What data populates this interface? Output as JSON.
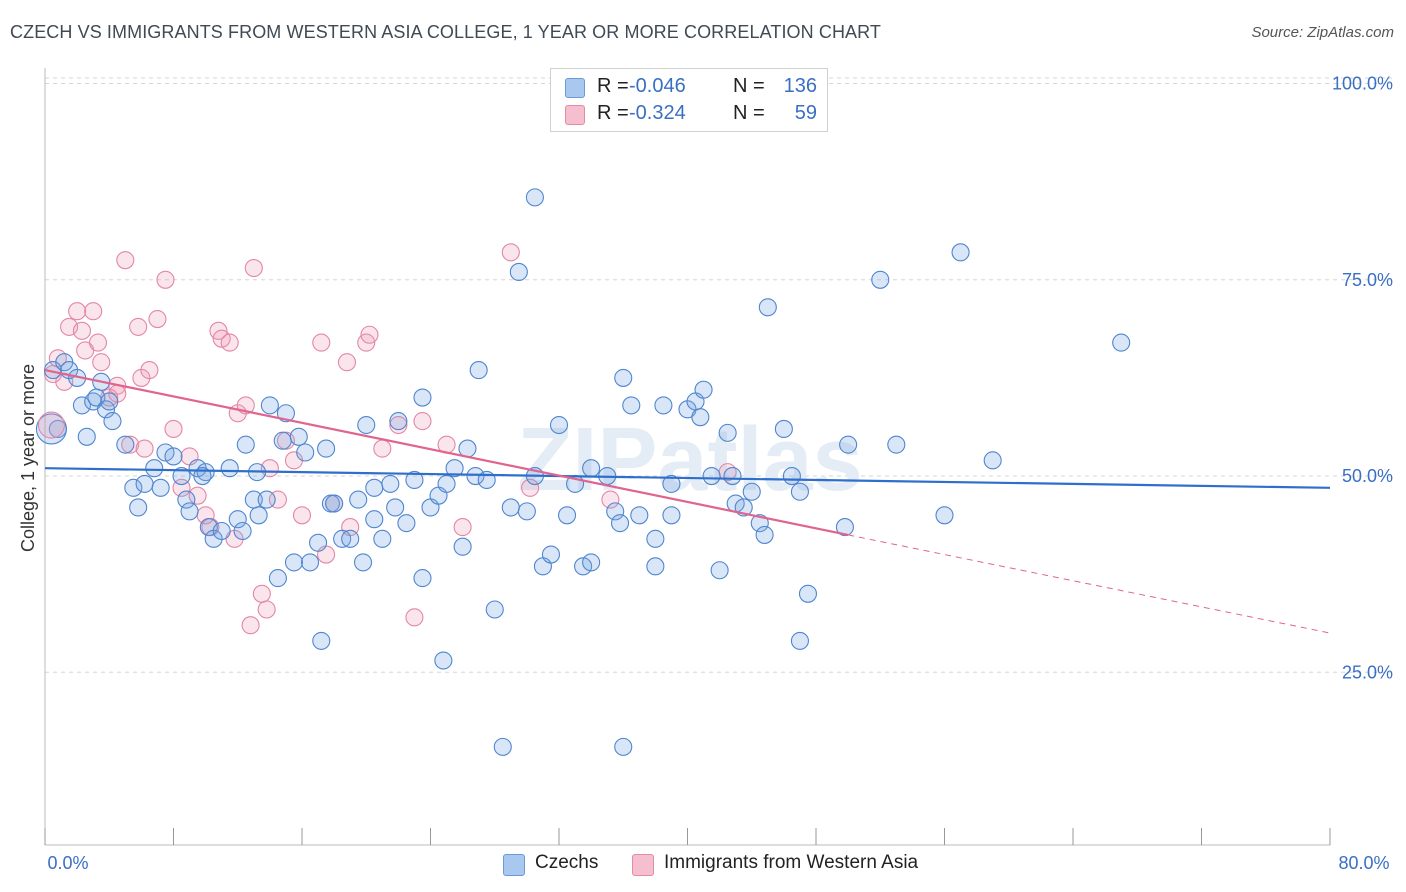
{
  "title": "CZECH VS IMMIGRANTS FROM WESTERN ASIA COLLEGE, 1 YEAR OR MORE CORRELATION CHART",
  "source": "Source: ZipAtlas.com",
  "watermark": "ZIPatlas",
  "legend": {
    "rows": [
      {
        "r_label": "R =",
        "r_value": "-0.046",
        "n_label": "N =",
        "n_value": "136",
        "color": "#a9c8f0",
        "border": "#6a9ad8"
      },
      {
        "r_label": "R =",
        "r_value": "-0.324",
        "n_label": "N =",
        "n_value": "59",
        "color": "#f6bfd0",
        "border": "#e38aa6"
      }
    ]
  },
  "bottom_legend": [
    {
      "label": "Czechs",
      "color": "#a9c8f0",
      "border": "#6a9ad8"
    },
    {
      "label": "Immigrants from Western Asia",
      "color": "#f6bfd0",
      "border": "#e38aa6"
    }
  ],
  "colors": {
    "czech_fill": "rgba(120,165,225,0.28)",
    "czech_stroke": "#4f86d0",
    "czech_line": "#2f6fcc",
    "wa_fill": "rgba(240,150,180,0.25)",
    "wa_stroke": "#e387a6",
    "wa_line": "#e0648e",
    "grid": "#d6d6d6",
    "axis_text": "#3a6fc4"
  },
  "chart_data": {
    "type": "scatter",
    "title": "CZECH VS IMMIGRANTS FROM WESTERN ASIA COLLEGE, 1 YEAR OR MORE CORRELATION CHART",
    "xlabel": "",
    "ylabel": "College, 1 year or more",
    "xlim": [
      0,
      80
    ],
    "ylim": [
      3,
      103
    ],
    "x_tick_labels": [
      "0.0%",
      "80.0%"
    ],
    "y_ticks": [
      25,
      50,
      75,
      100
    ],
    "y_tick_labels": [
      "25.0%",
      "50.0%",
      "75.0%",
      "100.0%"
    ],
    "grid": true,
    "legend_position": "top-center",
    "series": [
      {
        "name": "Czechs",
        "r": -0.046,
        "n": 136,
        "trend": {
          "x": [
            0,
            80
          ],
          "y": [
            51.0,
            48.5
          ]
        },
        "points": [
          [
            0.5,
            63.5
          ],
          [
            0.8,
            56
          ],
          [
            1.2,
            64.5
          ],
          [
            1.5,
            63.5
          ],
          [
            2,
            62.5
          ],
          [
            2.3,
            59
          ],
          [
            2.6,
            55
          ],
          [
            3,
            59.5
          ],
          [
            3.2,
            60
          ],
          [
            3.5,
            62
          ],
          [
            3.8,
            58.5
          ],
          [
            4,
            59.5
          ],
          [
            4.2,
            57
          ],
          [
            5,
            54
          ],
          [
            5.5,
            48.5
          ],
          [
            5.8,
            46
          ],
          [
            6.2,
            49
          ],
          [
            6.8,
            51
          ],
          [
            7.2,
            48.5
          ],
          [
            7.5,
            53
          ],
          [
            8,
            52.5
          ],
          [
            8.5,
            50
          ],
          [
            8.8,
            47
          ],
          [
            9,
            45.5
          ],
          [
            9.5,
            51
          ],
          [
            10,
            50.5
          ],
          [
            10.2,
            43.5
          ],
          [
            10.5,
            42
          ],
          [
            11,
            43
          ],
          [
            11.5,
            51
          ],
          [
            12,
            44.5
          ],
          [
            12.3,
            43
          ],
          [
            12.5,
            54
          ],
          [
            13,
            47
          ],
          [
            13.3,
            45
          ],
          [
            13.8,
            47
          ],
          [
            14,
            59
          ],
          [
            14.5,
            37
          ],
          [
            14.8,
            54.5
          ],
          [
            15,
            58
          ],
          [
            15.5,
            39
          ],
          [
            15.8,
            55
          ],
          [
            16.2,
            53
          ],
          [
            16.5,
            39
          ],
          [
            17,
            41.5
          ],
          [
            17.2,
            29
          ],
          [
            17.5,
            53.5
          ],
          [
            17.8,
            46.5
          ],
          [
            18,
            46.5
          ],
          [
            18.5,
            42
          ],
          [
            19,
            42
          ],
          [
            19.5,
            47
          ],
          [
            19.8,
            39
          ],
          [
            20,
            56.5
          ],
          [
            20.5,
            48.5
          ],
          [
            21,
            42
          ],
          [
            21.5,
            49
          ],
          [
            21.8,
            46
          ],
          [
            22,
            57
          ],
          [
            22.5,
            44
          ],
          [
            23,
            49.5
          ],
          [
            23.5,
            37
          ],
          [
            24,
            46
          ],
          [
            24.5,
            47.5
          ],
          [
            24.8,
            26.5
          ],
          [
            25,
            49
          ],
          [
            25.5,
            51
          ],
          [
            26,
            41
          ],
          [
            26.3,
            53.5
          ],
          [
            26.8,
            50
          ],
          [
            27,
            63.5
          ],
          [
            27.5,
            49.5
          ],
          [
            28,
            33
          ],
          [
            28.5,
            15.5
          ],
          [
            29,
            46
          ],
          [
            29.5,
            76
          ],
          [
            30,
            45.5
          ],
          [
            30.5,
            85.5
          ],
          [
            31,
            38.5
          ],
          [
            31.5,
            40
          ],
          [
            32,
            56.5
          ],
          [
            32.5,
            45
          ],
          [
            33,
            49
          ],
          [
            33.5,
            38.5
          ],
          [
            34,
            39
          ],
          [
            34,
            51
          ],
          [
            35,
            50
          ],
          [
            35.5,
            45.5
          ],
          [
            35.8,
            44
          ],
          [
            36,
            62.5
          ],
          [
            36,
            15.5
          ],
          [
            36.5,
            59
          ],
          [
            37,
            45
          ],
          [
            38,
            38.5
          ],
          [
            38,
            42
          ],
          [
            38.5,
            59
          ],
          [
            39,
            49
          ],
          [
            39,
            45
          ],
          [
            40,
            58.5
          ],
          [
            40.5,
            59.5
          ],
          [
            40.8,
            57.5
          ],
          [
            41,
            61
          ],
          [
            41.5,
            50
          ],
          [
            42,
            38
          ],
          [
            42.5,
            55.5
          ],
          [
            42.8,
            50
          ],
          [
            43,
            46.5
          ],
          [
            43.5,
            46
          ],
          [
            44,
            48
          ],
          [
            44.5,
            44
          ],
          [
            44.8,
            42.5
          ],
          [
            45,
            71.5
          ],
          [
            46,
            56
          ],
          [
            46.5,
            50
          ],
          [
            47,
            29
          ],
          [
            47,
            48
          ],
          [
            47.5,
            35
          ],
          [
            50,
            54
          ],
          [
            52,
            75
          ],
          [
            53,
            54
          ],
          [
            56,
            45
          ],
          [
            57,
            78.5
          ],
          [
            59,
            52
          ],
          [
            67,
            67
          ],
          [
            49.8,
            43.5
          ],
          [
            20.5,
            44.5
          ],
          [
            13.2,
            50.5
          ],
          [
            30.5,
            50
          ],
          [
            9.8,
            50
          ],
          [
            23.5,
            60
          ]
        ]
      },
      {
        "name": "Immigrants from Western Asia",
        "r": -0.324,
        "n": 59,
        "trend": {
          "x": [
            0,
            50
          ],
          "y": [
            63.5,
            42.5
          ]
        },
        "trend_dashed": {
          "x": [
            50,
            80
          ],
          "y": [
            42.5,
            30
          ]
        },
        "points": [
          [
            0.5,
            63
          ],
          [
            0.8,
            65
          ],
          [
            1.2,
            62
          ],
          [
            1.5,
            69
          ],
          [
            2,
            71
          ],
          [
            2.3,
            68.5
          ],
          [
            2.5,
            66
          ],
          [
            3,
            71
          ],
          [
            3.3,
            67
          ],
          [
            3.5,
            64.5
          ],
          [
            4,
            60
          ],
          [
            4.5,
            61.5
          ],
          [
            5,
            77.5
          ],
          [
            5.3,
            54
          ],
          [
            5.8,
            69
          ],
          [
            6,
            62.5
          ],
          [
            6.5,
            63.5
          ],
          [
            7,
            70
          ],
          [
            7.5,
            75
          ],
          [
            8,
            56
          ],
          [
            8.5,
            48.5
          ],
          [
            9,
            52.5
          ],
          [
            9.5,
            47.5
          ],
          [
            10,
            45
          ],
          [
            10.3,
            43.5
          ],
          [
            10.8,
            68.5
          ],
          [
            11,
            67.5
          ],
          [
            11.5,
            67
          ],
          [
            12,
            58
          ],
          [
            12.5,
            59
          ],
          [
            13,
            76.5
          ],
          [
            13.5,
            35
          ],
          [
            14,
            51
          ],
          [
            14.5,
            47
          ],
          [
            15,
            54.5
          ],
          [
            15.5,
            52
          ],
          [
            16,
            45
          ],
          [
            17.2,
            67
          ],
          [
            17.5,
            40
          ],
          [
            18,
            46.5
          ],
          [
            18.8,
            64.5
          ],
          [
            19,
            43.5
          ],
          [
            20,
            67
          ],
          [
            20.2,
            68
          ],
          [
            21,
            53.5
          ],
          [
            22,
            56.5
          ],
          [
            23,
            32
          ],
          [
            23.5,
            57
          ],
          [
            25,
            54
          ],
          [
            26,
            43.5
          ],
          [
            29,
            78.5
          ],
          [
            30.2,
            48.5
          ],
          [
            35.2,
            47
          ],
          [
            42.5,
            50.5
          ],
          [
            4.5,
            60.5
          ],
          [
            6.2,
            53.5
          ],
          [
            11.8,
            42
          ],
          [
            12.8,
            31
          ],
          [
            13.8,
            33
          ]
        ]
      }
    ]
  }
}
